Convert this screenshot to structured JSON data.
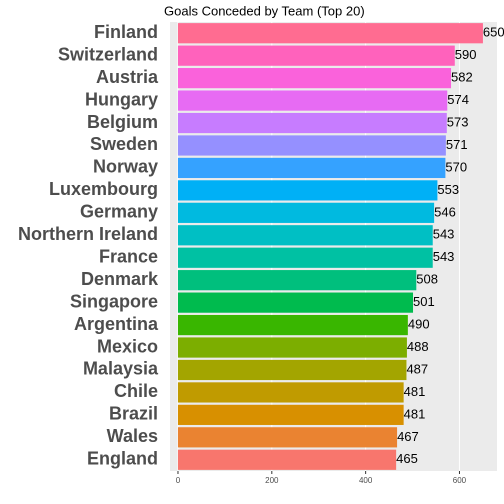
{
  "chart_data": {
    "type": "bar",
    "orientation": "horizontal",
    "title": "Goals Conceded by Team (Top 20)",
    "categories": [
      "Finland",
      "Switzerland",
      "Austria",
      "Hungary",
      "Belgium",
      "Sweden",
      "Norway",
      "Luxembourg",
      "Germany",
      "Northern Ireland",
      "France",
      "Denmark",
      "Singapore",
      "Argentina",
      "Mexico",
      "Malaysia",
      "Chile",
      "Brazil",
      "Wales",
      "England"
    ],
    "values": [
      650,
      590,
      582,
      574,
      573,
      571,
      570,
      553,
      546,
      543,
      543,
      508,
      501,
      490,
      488,
      487,
      481,
      481,
      467,
      465
    ],
    "colors": [
      "#FF6C91",
      "#FF62BC",
      "#FA62DB",
      "#E76BF3",
      "#C77CFF",
      "#9590FF",
      "#35A2FF",
      "#00B0F6",
      "#00BAE0",
      "#00BFC4",
      "#00C1A3",
      "#00BF7D",
      "#00BB4E",
      "#39B600",
      "#7CAE00",
      "#A3A500",
      "#C09B00",
      "#D89000",
      "#EA8331",
      "#F8766D"
    ],
    "xlim": [
      -17,
      680
    ],
    "xticks": [
      0,
      200,
      400,
      600
    ],
    "grid": true
  }
}
